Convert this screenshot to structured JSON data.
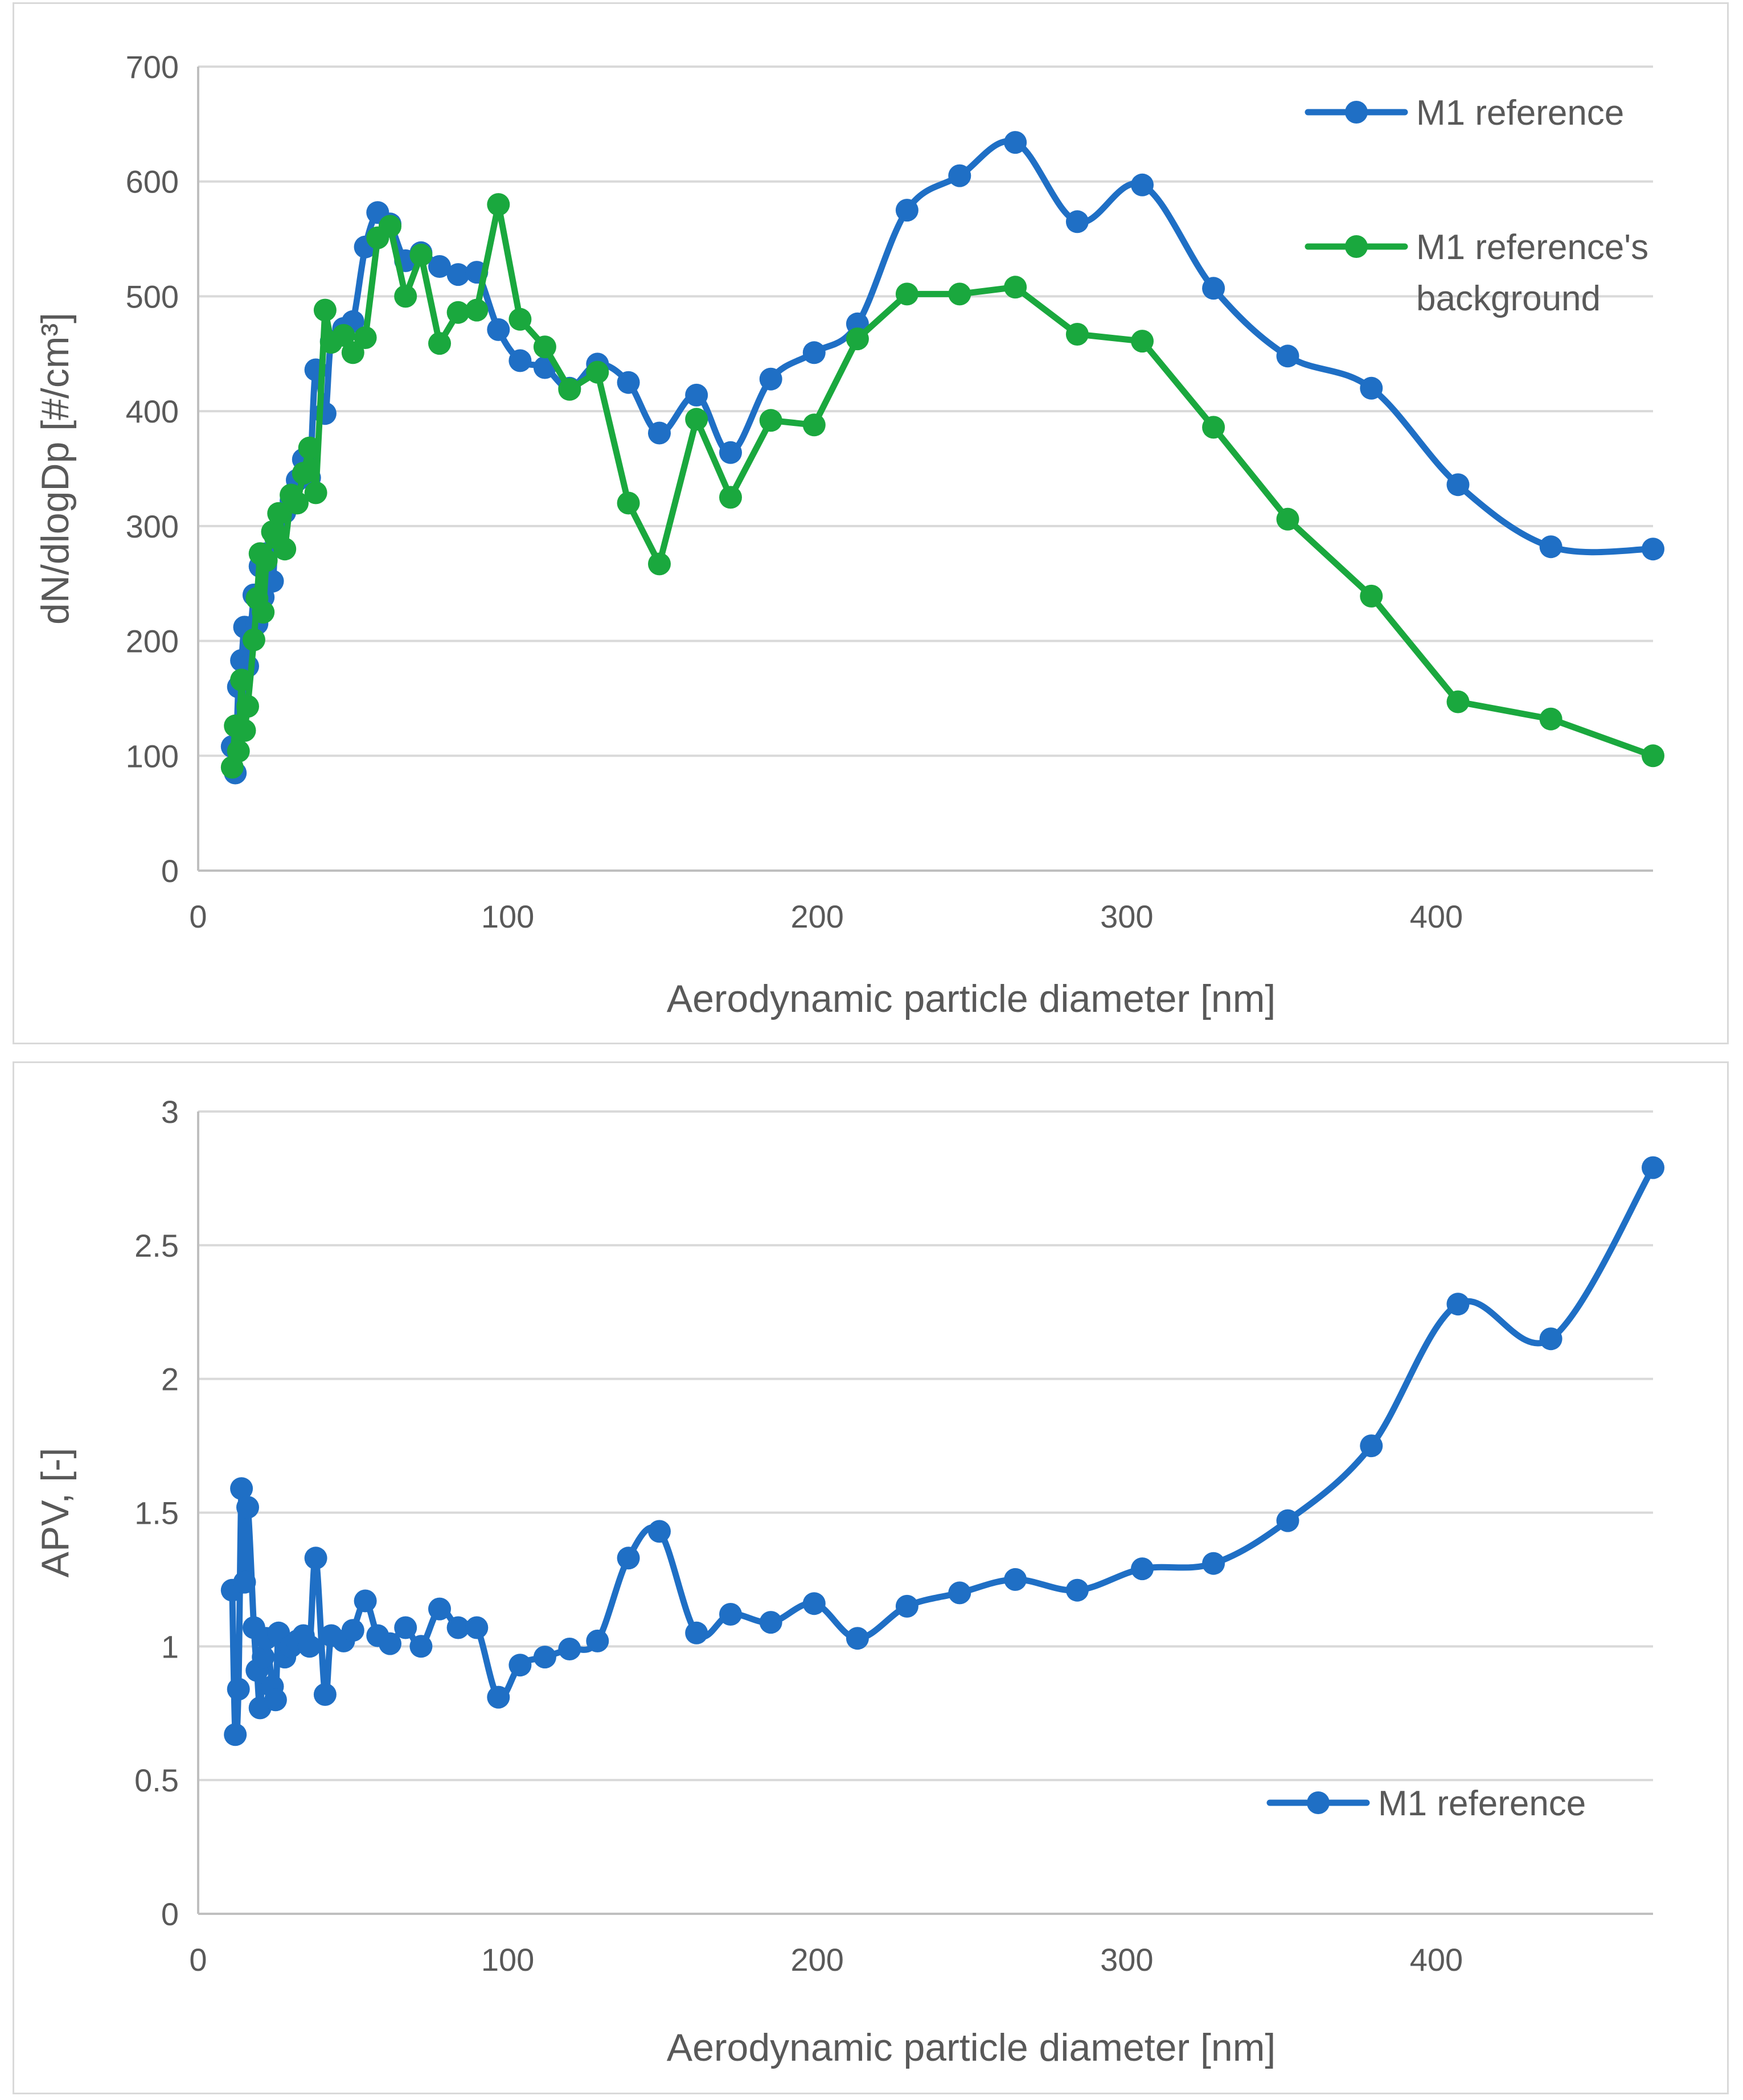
{
  "colors": {
    "blue": "#1f6fc5",
    "green": "#1aa83e",
    "grid": "#d9d9d9",
    "text": "#595959"
  },
  "chart_data": [
    {
      "type": "line",
      "title": "",
      "xlabel": "Aerodynamic particle diameter [nm]",
      "ylabel": "dN/dlogDp [#/cm³]",
      "xlim": [
        0,
        470
      ],
      "ylim": [
        0,
        700
      ],
      "xticks": [
        0,
        100,
        200,
        300,
        400
      ],
      "yticks": [
        0,
        100,
        200,
        300,
        400,
        500,
        600,
        700
      ],
      "legend_position": "top-right",
      "series": [
        {
          "name": "M1 reference",
          "color": "#1f6fc5",
          "smooth": true,
          "x": [
            11,
            12,
            13,
            14,
            15,
            16,
            18,
            19,
            20,
            21,
            22,
            24,
            25,
            26,
            28,
            30,
            32,
            34,
            36,
            38,
            41,
            43,
            47,
            50,
            54,
            58,
            62,
            67,
            72,
            78,
            84,
            90,
            97,
            104,
            112,
            120,
            129,
            139,
            149,
            161,
            172,
            185,
            199,
            213,
            229,
            246,
            264,
            284,
            305,
            328,
            352,
            379,
            407,
            437,
            470
          ],
          "y": [
            108,
            85,
            160,
            183,
            212,
            178,
            240,
            215,
            265,
            238,
            276,
            252,
            291,
            298,
            312,
            322,
            340,
            358,
            342,
            436,
            398,
            461,
            472,
            478,
            543,
            573,
            563,
            531,
            538,
            526,
            519,
            521,
            471,
            444,
            438,
            420,
            441,
            425,
            381,
            414,
            364,
            428,
            451,
            476,
            575,
            605,
            634,
            565,
            597,
            507,
            448,
            420,
            336,
            282,
            280
          ]
        },
        {
          "name": "M1 reference's",
          "name_line2": "background",
          "color": "#1aa83e",
          "smooth": false,
          "x": [
            11,
            12,
            13,
            14,
            15,
            16,
            18,
            19,
            20,
            21,
            22,
            24,
            25,
            26,
            28,
            30,
            32,
            34,
            36,
            38,
            41,
            43,
            47,
            50,
            54,
            58,
            62,
            67,
            72,
            78,
            84,
            90,
            97,
            104,
            112,
            120,
            129,
            139,
            149,
            161,
            172,
            185,
            199,
            213,
            229,
            246,
            264,
            284,
            305,
            328,
            352,
            379,
            407,
            437,
            470
          ],
          "y": [
            90,
            126,
            104,
            166,
            122,
            143,
            201,
            237,
            276,
            225,
            270,
            295,
            290,
            311,
            280,
            327,
            320,
            346,
            368,
            329,
            488,
            460,
            466,
            451,
            464,
            551,
            561,
            500,
            536,
            459,
            486,
            488,
            580,
            480,
            456,
            419,
            434,
            320,
            267,
            393,
            325,
            392,
            388,
            463,
            502,
            502,
            508,
            467,
            461,
            386,
            306,
            239,
            147,
            132,
            100
          ]
        }
      ]
    },
    {
      "type": "line",
      "title": "",
      "xlabel": "Aerodynamic particle diameter [nm]",
      "ylabel": "APV, [-]",
      "xlim": [
        0,
        470
      ],
      "ylim": [
        0,
        3
      ],
      "xticks": [
        0,
        100,
        200,
        300,
        400
      ],
      "yticks": [
        0,
        0.5,
        1,
        1.5,
        2,
        2.5,
        3
      ],
      "ytick_labels": [
        "0",
        "0.5",
        "1",
        "1.5",
        "2",
        "2.5",
        "3"
      ],
      "legend_position": "bottom-right",
      "series": [
        {
          "name": "M1 reference",
          "color": "#1f6fc5",
          "smooth": true,
          "x": [
            11,
            12,
            13,
            14,
            15,
            16,
            18,
            19,
            20,
            21,
            22,
            24,
            25,
            26,
            28,
            30,
            32,
            34,
            36,
            38,
            41,
            43,
            47,
            50,
            54,
            58,
            62,
            67,
            72,
            78,
            84,
            90,
            97,
            104,
            112,
            120,
            129,
            139,
            149,
            161,
            172,
            185,
            199,
            213,
            229,
            246,
            264,
            284,
            305,
            328,
            352,
            379,
            407,
            437,
            470
          ],
          "y": [
            1.21,
            0.67,
            0.84,
            1.59,
            1.24,
            1.52,
            1.07,
            0.91,
            0.77,
            0.96,
            1.03,
            0.85,
            0.8,
            1.05,
            0.96,
            1.0,
            1.02,
            1.04,
            1.0,
            1.33,
            0.82,
            1.04,
            1.02,
            1.06,
            1.17,
            1.04,
            1.01,
            1.07,
            1.0,
            1.14,
            1.07,
            1.07,
            0.81,
            0.93,
            0.96,
            0.99,
            1.02,
            1.33,
            1.43,
            1.05,
            1.12,
            1.09,
            1.16,
            1.03,
            1.15,
            1.2,
            1.25,
            1.21,
            1.29,
            1.31,
            1.47,
            1.75,
            2.28,
            2.15,
            2.79
          ]
        }
      ]
    }
  ]
}
